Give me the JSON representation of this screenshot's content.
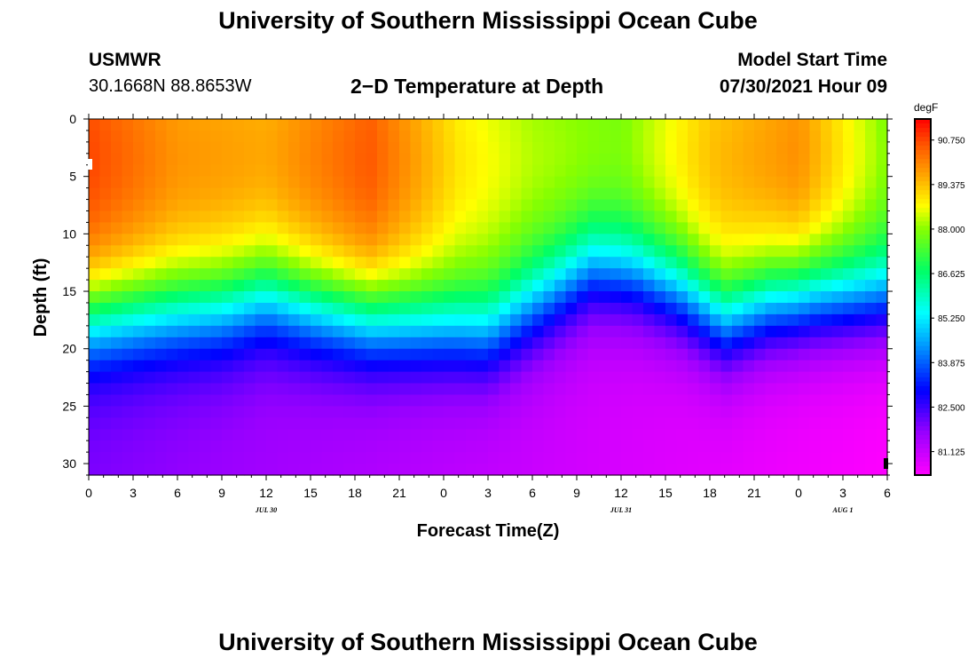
{
  "page": {
    "title_top": "University of Southern Mississippi Ocean Cube",
    "title_bottom": "University of Southern Mississippi Ocean Cube",
    "station": "USMWR",
    "coords": "30.1668N  88.8653W",
    "subtitle": "2−D Temperature at Depth",
    "model_label": "Model Start Time",
    "model_time": "07/30/2021 Hour 09"
  },
  "chart_data": {
    "type": "heatmap",
    "title": "2−D Temperature at Depth",
    "xlabel": "Forecast Time(Z)",
    "ylabel": "Depth (ft)",
    "x_tick_labels": [
      "0",
      "3",
      "6",
      "9",
      "12",
      "15",
      "18",
      "21",
      "0",
      "3",
      "6",
      "9",
      "12",
      "15",
      "18",
      "21",
      "0",
      "3",
      "6"
    ],
    "x_range_hours": [
      0,
      54
    ],
    "x_date_labels": [
      {
        "label": "JUL 30",
        "hour": 12
      },
      {
        "label": "JUL 31",
        "hour": 36
      },
      {
        "label": "AUG 1",
        "hour": 51
      }
    ],
    "y_range_ft": [
      0,
      31
    ],
    "y_ticks": [
      0,
      5,
      10,
      15,
      20,
      25,
      30
    ],
    "colorbar": {
      "unit": "degF",
      "min": 80.4,
      "max": 91.4,
      "labels": [
        "90.750",
        "89.375",
        "88.000",
        "86.625",
        "85.250",
        "83.875",
        "82.500",
        "81.125"
      ],
      "stops": [
        {
          "value": 80.4,
          "color": "#ff00ff"
        },
        {
          "value": 81.7,
          "color": "#9900ff"
        },
        {
          "value": 83.0,
          "color": "#0000ff"
        },
        {
          "value": 84.4,
          "color": "#0099ff"
        },
        {
          "value": 85.4,
          "color": "#00ffff"
        },
        {
          "value": 86.7,
          "color": "#00ff66"
        },
        {
          "value": 88.0,
          "color": "#88ff00"
        },
        {
          "value": 88.7,
          "color": "#ffff00"
        },
        {
          "value": 89.6,
          "color": "#ffaa00"
        },
        {
          "value": 90.6,
          "color": "#ff5500"
        },
        {
          "value": 91.4,
          "color": "#ff0000"
        }
      ]
    },
    "structure": {
      "surface_temp_hours": [
        0,
        6,
        12,
        19,
        25,
        30,
        36,
        42,
        48,
        54
      ],
      "surface_temp_values": [
        90.8,
        89.9,
        89.7,
        90.6,
        89.0,
        88.3,
        88.0,
        89.4,
        90.0,
        88.0
      ],
      "thermocline_hours": [
        0,
        4,
        9,
        12,
        15,
        19,
        24,
        27,
        31,
        34,
        37,
        40,
        43,
        46,
        49,
        52,
        54
      ],
      "thermocline_depth_ft": [
        22.5,
        22.0,
        21.5,
        20.5,
        21.5,
        22.5,
        23.0,
        23.5,
        20.5,
        18.0,
        18.5,
        20.0,
        22.5,
        21.0,
        20.5,
        20.5,
        20.5
      ],
      "deep_temp_left": 81.9,
      "deep_temp_right": 80.4
    }
  }
}
